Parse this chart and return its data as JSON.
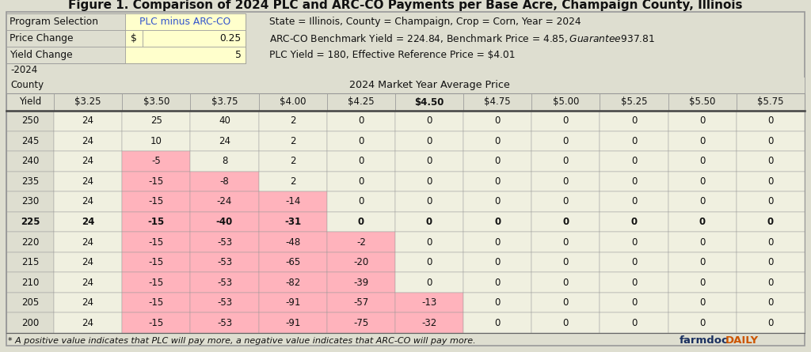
{
  "title": "Figure 1. Comparison of 2024 PLC and ARC-CO Payments per Base Acre, Champaign County, Illinois",
  "info_line1": "State = Illinois, County = Champaign, Crop = Corn, Year = 2024",
  "info_line2": "ARC-CO Benchmark Yield = 224.84, Benchmark Price = $4.85, Guarantee  $937.81",
  "info_line3": "PLC Yield = 180, Effective Reference Price = $4.01",
  "label_program": "Program Selection",
  "label_price": "Price Change",
  "label_yield": "Yield Change",
  "val_program": "PLC minus ARC-CO",
  "val_price_sym": "$",
  "val_price": "0.25",
  "val_yield": "5",
  "col_header_label": "2024 Market Year Average Price",
  "row_header_label1": "-2024",
  "row_header_label2": "County",
  "row_header_label3": "Yield",
  "price_cols": [
    "$3.25",
    "$3.50",
    "$3.75",
    "$4.00",
    "$4.25",
    "$4.50",
    "$4.75",
    "$5.00",
    "$5.25",
    "$5.50",
    "$5.75"
  ],
  "bold_price_col": "$4.50",
  "yields": [
    250,
    245,
    240,
    235,
    230,
    225,
    220,
    215,
    210,
    205,
    200
  ],
  "bold_yield_row": 225,
  "table_data": [
    [
      24,
      25,
      40,
      2,
      0,
      0,
      0,
      0,
      0,
      0,
      0
    ],
    [
      24,
      10,
      24,
      2,
      0,
      0,
      0,
      0,
      0,
      0,
      0
    ],
    [
      24,
      -5,
      8,
      2,
      0,
      0,
      0,
      0,
      0,
      0,
      0
    ],
    [
      24,
      -15,
      -8,
      2,
      0,
      0,
      0,
      0,
      0,
      0,
      0
    ],
    [
      24,
      -15,
      -24,
      -14,
      0,
      0,
      0,
      0,
      0,
      0,
      0
    ],
    [
      24,
      -15,
      -40,
      -31,
      0,
      0,
      0,
      0,
      0,
      0,
      0
    ],
    [
      24,
      -15,
      -53,
      -48,
      -2,
      0,
      0,
      0,
      0,
      0,
      0
    ],
    [
      24,
      -15,
      -53,
      -65,
      -20,
      0,
      0,
      0,
      0,
      0,
      0
    ],
    [
      24,
      -15,
      -53,
      -82,
      -39,
      0,
      0,
      0,
      0,
      0,
      0
    ],
    [
      24,
      -15,
      -53,
      -91,
      -57,
      -13,
      0,
      0,
      0,
      0,
      0
    ],
    [
      24,
      -15,
      -53,
      -91,
      -75,
      -32,
      0,
      0,
      0,
      0,
      0
    ]
  ],
  "footnote": "* A positive value indicates that PLC will pay more, a negative value indicates that ARC-CO will pay more.",
  "farmdoc_text": "farmdoc",
  "farmdoc_daily": "DAILY",
  "bg_color": "#deded0",
  "table_bg": "#f0f0e0",
  "neg_cell_color": "#ffb3bc",
  "program_cell_color": "#ffffcc",
  "program_text_color": "#3355cc",
  "price_cell_color": "#ffffcc",
  "yield_cell_color": "#ffffcc",
  "border_color": "#999999",
  "text_color": "#111111",
  "farmdoc_blue": "#1a3060",
  "farmdoc_orange": "#cc5500",
  "title_fontsize": 11,
  "info_fontsize": 8.8,
  "table_fontsize": 8.5,
  "footnote_fontsize": 8.0
}
